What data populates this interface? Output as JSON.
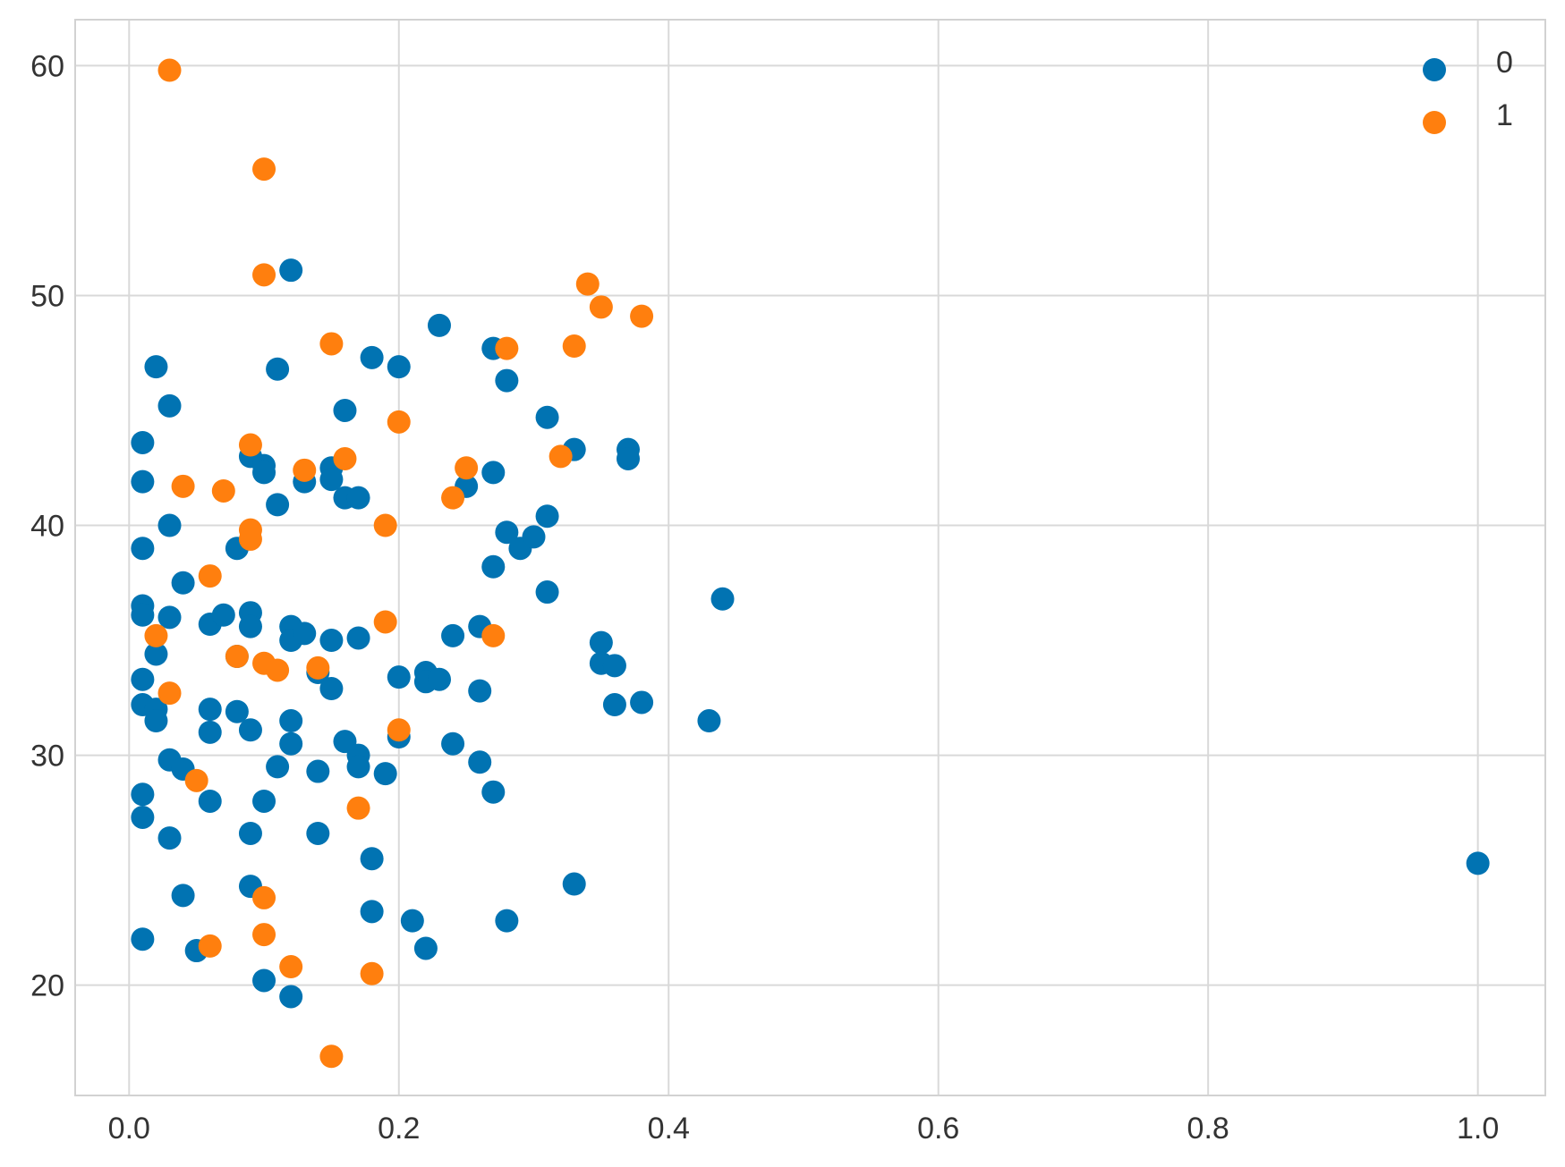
{
  "chart_data": {
    "type": "scatter",
    "title": "",
    "xlabel": "",
    "ylabel": "",
    "xlim": [
      -0.04,
      1.05
    ],
    "ylim": [
      15.2,
      62
    ],
    "x_ticks": [
      0.0,
      0.2,
      0.4,
      0.6,
      0.8,
      1.0
    ],
    "x_tick_labels": [
      "0.0",
      "0.2",
      "0.4",
      "0.6",
      "0.8",
      "1.0"
    ],
    "y_ticks": [
      20,
      30,
      40,
      50,
      60
    ],
    "y_tick_labels": [
      "20",
      "30",
      "40",
      "50",
      "60"
    ],
    "grid": true,
    "legend_position": "top-right",
    "series": [
      {
        "name": "0",
        "color": "#0173b2",
        "points": [
          [
            0.01,
            43.6
          ],
          [
            0.01,
            41.9
          ],
          [
            0.01,
            39.0
          ],
          [
            0.01,
            36.5
          ],
          [
            0.01,
            36.1
          ],
          [
            0.01,
            33.3
          ],
          [
            0.01,
            32.2
          ],
          [
            0.01,
            28.3
          ],
          [
            0.01,
            27.3
          ],
          [
            0.01,
            22.0
          ],
          [
            0.02,
            46.9
          ],
          [
            0.02,
            34.4
          ],
          [
            0.02,
            32.0
          ],
          [
            0.02,
            31.5
          ],
          [
            0.03,
            45.2
          ],
          [
            0.03,
            40.0
          ],
          [
            0.03,
            36.0
          ],
          [
            0.03,
            29.8
          ],
          [
            0.03,
            26.4
          ],
          [
            0.04,
            37.5
          ],
          [
            0.04,
            29.4
          ],
          [
            0.04,
            23.9
          ],
          [
            0.05,
            21.5
          ],
          [
            0.06,
            35.7
          ],
          [
            0.06,
            32.0
          ],
          [
            0.06,
            31.0
          ],
          [
            0.06,
            28.0
          ],
          [
            0.07,
            36.1
          ],
          [
            0.08,
            39.0
          ],
          [
            0.08,
            34.3
          ],
          [
            0.08,
            31.9
          ],
          [
            0.09,
            43.0
          ],
          [
            0.09,
            36.2
          ],
          [
            0.09,
            35.6
          ],
          [
            0.09,
            31.1
          ],
          [
            0.09,
            26.6
          ],
          [
            0.09,
            24.3
          ],
          [
            0.1,
            42.6
          ],
          [
            0.1,
            42.3
          ],
          [
            0.1,
            28.0
          ],
          [
            0.1,
            20.2
          ],
          [
            0.11,
            46.8
          ],
          [
            0.11,
            40.9
          ],
          [
            0.11,
            29.5
          ],
          [
            0.12,
            51.1
          ],
          [
            0.12,
            35.6
          ],
          [
            0.12,
            35.0
          ],
          [
            0.12,
            31.5
          ],
          [
            0.12,
            30.5
          ],
          [
            0.12,
            19.5
          ],
          [
            0.13,
            41.9
          ],
          [
            0.13,
            35.3
          ],
          [
            0.14,
            33.6
          ],
          [
            0.14,
            29.3
          ],
          [
            0.14,
            26.6
          ],
          [
            0.15,
            42.5
          ],
          [
            0.15,
            42.0
          ],
          [
            0.15,
            35.0
          ],
          [
            0.15,
            32.9
          ],
          [
            0.16,
            45.0
          ],
          [
            0.16,
            41.2
          ],
          [
            0.16,
            30.6
          ],
          [
            0.17,
            41.2
          ],
          [
            0.17,
            35.1
          ],
          [
            0.17,
            30.0
          ],
          [
            0.17,
            29.5
          ],
          [
            0.18,
            47.3
          ],
          [
            0.18,
            25.5
          ],
          [
            0.18,
            23.2
          ],
          [
            0.19,
            29.2
          ],
          [
            0.2,
            46.9
          ],
          [
            0.2,
            33.4
          ],
          [
            0.2,
            30.8
          ],
          [
            0.21,
            22.8
          ],
          [
            0.22,
            33.6
          ],
          [
            0.22,
            33.2
          ],
          [
            0.22,
            21.6
          ],
          [
            0.23,
            48.7
          ],
          [
            0.23,
            33.3
          ],
          [
            0.24,
            35.2
          ],
          [
            0.24,
            30.5
          ],
          [
            0.25,
            41.7
          ],
          [
            0.26,
            35.6
          ],
          [
            0.26,
            32.8
          ],
          [
            0.26,
            29.7
          ],
          [
            0.27,
            47.7
          ],
          [
            0.27,
            42.3
          ],
          [
            0.27,
            38.2
          ],
          [
            0.27,
            28.4
          ],
          [
            0.28,
            46.3
          ],
          [
            0.28,
            39.7
          ],
          [
            0.28,
            22.8
          ],
          [
            0.29,
            39.0
          ],
          [
            0.3,
            39.5
          ],
          [
            0.31,
            44.7
          ],
          [
            0.31,
            40.4
          ],
          [
            0.31,
            37.1
          ],
          [
            0.33,
            43.3
          ],
          [
            0.33,
            24.4
          ],
          [
            0.35,
            34.9
          ],
          [
            0.35,
            34.0
          ],
          [
            0.36,
            33.9
          ],
          [
            0.36,
            32.2
          ],
          [
            0.37,
            43.3
          ],
          [
            0.37,
            42.9
          ],
          [
            0.38,
            32.3
          ],
          [
            0.43,
            31.5
          ],
          [
            0.44,
            36.8
          ],
          [
            1.0,
            25.3
          ]
        ]
      },
      {
        "name": "1",
        "color": "#ff7f0e",
        "points": [
          [
            0.03,
            59.8
          ],
          [
            0.1,
            55.5
          ],
          [
            0.1,
            50.9
          ],
          [
            0.15,
            47.9
          ],
          [
            0.34,
            50.5
          ],
          [
            0.35,
            49.5
          ],
          [
            0.38,
            49.1
          ],
          [
            0.28,
            47.7
          ],
          [
            0.33,
            47.8
          ],
          [
            0.2,
            44.5
          ],
          [
            0.09,
            43.5
          ],
          [
            0.16,
            42.9
          ],
          [
            0.13,
            42.4
          ],
          [
            0.32,
            43.0
          ],
          [
            0.25,
            42.5
          ],
          [
            0.04,
            41.7
          ],
          [
            0.07,
            41.5
          ],
          [
            0.24,
            41.2
          ],
          [
            0.19,
            40.0
          ],
          [
            0.09,
            39.8
          ],
          [
            0.09,
            39.4
          ],
          [
            0.06,
            37.8
          ],
          [
            0.19,
            35.8
          ],
          [
            0.02,
            35.2
          ],
          [
            0.27,
            35.2
          ],
          [
            0.08,
            34.3
          ],
          [
            0.1,
            34.0
          ],
          [
            0.11,
            33.7
          ],
          [
            0.14,
            33.8
          ],
          [
            0.03,
            32.7
          ],
          [
            0.2,
            31.1
          ],
          [
            0.05,
            28.9
          ],
          [
            0.17,
            27.7
          ],
          [
            0.1,
            23.8
          ],
          [
            0.1,
            22.2
          ],
          [
            0.06,
            21.7
          ],
          [
            0.12,
            20.8
          ],
          [
            0.18,
            20.5
          ],
          [
            0.15,
            16.9
          ]
        ]
      }
    ]
  }
}
